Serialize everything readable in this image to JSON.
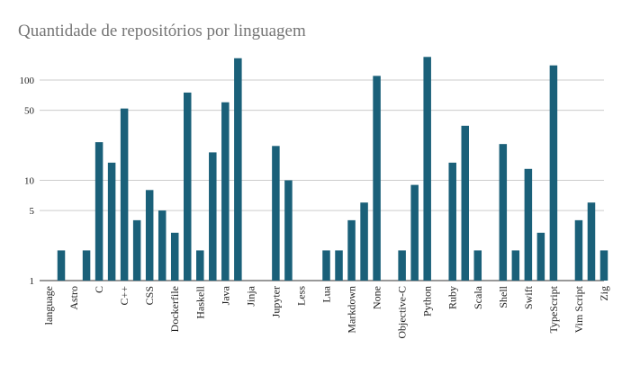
{
  "chart_data": {
    "type": "bar",
    "title": "Quantidade de repositórios por linguagem",
    "xlabel": "",
    "ylabel": "",
    "y_scale": "log",
    "ylim": [
      1,
      180
    ],
    "yticks": [
      1,
      5,
      10,
      50,
      100
    ],
    "grid": true,
    "bar_color": "#1a6079",
    "categories": [
      "language",
      "",
      "Astro",
      "",
      "C",
      "",
      "C++",
      "",
      "CSS",
      "",
      "Dockerfile",
      "",
      "Haskell",
      "",
      "Java",
      "",
      "Jinja",
      "",
      "Jupyter",
      "",
      "Less",
      "",
      "Lua",
      "",
      "Markdown",
      "",
      "None",
      "",
      "Objective-C",
      "",
      "Python",
      "",
      "Ruby",
      "",
      "Scala",
      "",
      "Shell",
      "",
      "Swift",
      "",
      "TypeScript",
      "",
      "Vim Script",
      "",
      "Zig"
    ],
    "values": [
      null,
      2,
      null,
      2,
      24,
      15,
      52,
      4,
      8,
      5,
      3,
      75,
      2,
      19,
      60,
      165,
      null,
      null,
      22,
      10,
      null,
      null,
      2,
      2,
      4,
      6,
      110,
      null,
      2,
      9,
      170,
      null,
      15,
      35,
      2,
      null,
      23,
      2,
      13,
      3,
      140,
      null,
      4,
      6,
      2
    ]
  }
}
